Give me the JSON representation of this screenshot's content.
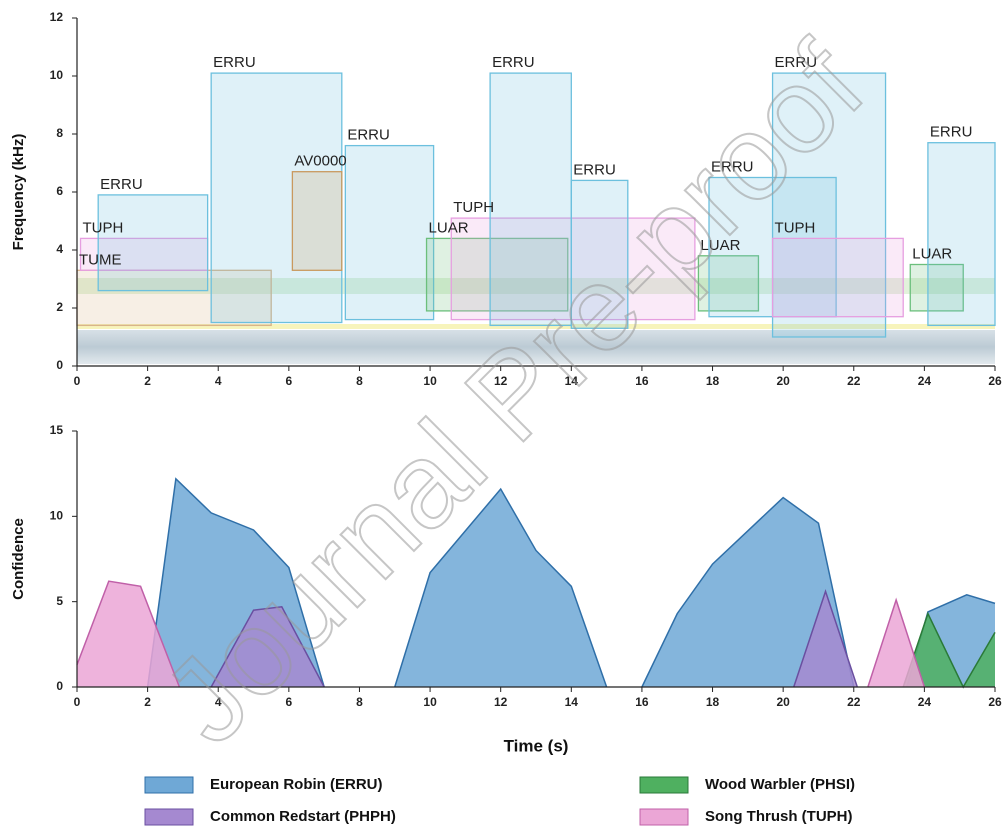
{
  "chart_data": [
    {
      "type": "boxes",
      "ylabel": "Frequency (kHz)",
      "xlim": [
        0,
        26
      ],
      "xticks": [
        0,
        2,
        4,
        6,
        8,
        10,
        12,
        14,
        16,
        18,
        20,
        22,
        24,
        26
      ],
      "ylim": [
        0,
        12
      ],
      "yticks": [
        0,
        2,
        4,
        6,
        8,
        10,
        12
      ],
      "label_colors": {
        "ERRU": "#6cc0de",
        "TUPH": "#e69ee0",
        "TUME": "#d9b48a",
        "AV0000": "#c9995e",
        "LUAR": "#6cbf7c"
      },
      "boxes": [
        {
          "label": "TUME",
          "x0": 0,
          "x1": 5.5,
          "y0": 1.4,
          "y1": 3.3
        },
        {
          "label": "TUPH",
          "x0": 0.1,
          "x1": 3.7,
          "y0": 3.3,
          "y1": 4.4
        },
        {
          "label": "ERRU",
          "x0": 0.6,
          "x1": 3.7,
          "y0": 2.6,
          "y1": 5.9
        },
        {
          "label": "ERRU",
          "x0": 3.8,
          "x1": 7.5,
          "y0": 1.5,
          "y1": 10.1
        },
        {
          "label": "AV0000",
          "x0": 6.1,
          "x1": 7.5,
          "y0": 3.3,
          "y1": 6.7
        },
        {
          "label": "ERRU",
          "x0": 7.6,
          "x1": 10.1,
          "y0": 1.6,
          "y1": 7.6
        },
        {
          "label": "LUAR",
          "x0": 9.9,
          "x1": 13.9,
          "y0": 1.9,
          "y1": 4.4
        },
        {
          "label": "TUPH",
          "x0": 10.6,
          "x1": 17.5,
          "y0": 1.6,
          "y1": 5.1
        },
        {
          "label": "ERRU",
          "x0": 11.7,
          "x1": 14,
          "y0": 1.4,
          "y1": 10.1
        },
        {
          "label": "ERRU",
          "x0": 14,
          "x1": 15.6,
          "y0": 1.3,
          "y1": 6.4
        },
        {
          "label": "LUAR",
          "x0": 17.6,
          "x1": 19.3,
          "y0": 1.9,
          "y1": 3.8
        },
        {
          "label": "ERRU",
          "x0": 17.9,
          "x1": 21.5,
          "y0": 1.7,
          "y1": 6.5
        },
        {
          "label": "ERRU",
          "x0": 19.7,
          "x1": 22.9,
          "y0": 1.0,
          "y1": 10.1
        },
        {
          "label": "TUPH",
          "x0": 19.7,
          "x1": 23.4,
          "y0": 1.7,
          "y1": 4.4
        },
        {
          "label": "LUAR",
          "x0": 23.6,
          "x1": 25.1,
          "y0": 1.9,
          "y1": 3.5
        },
        {
          "label": "ERRU",
          "x0": 24.1,
          "x1": 26,
          "y0": 1.4,
          "y1": 7.7
        }
      ]
    },
    {
      "type": "area",
      "xlabel": "Time (s)",
      "ylabel": "Confidence",
      "xlim": [
        0,
        26
      ],
      "xticks": [
        0,
        2,
        4,
        6,
        8,
        10,
        12,
        14,
        16,
        18,
        20,
        22,
        24,
        26
      ],
      "ylim": [
        0,
        15
      ],
      "yticks": [
        0,
        5,
        10,
        15
      ],
      "series": [
        {
          "name": "European Robin (ERRU)",
          "color": "#6fa8d6",
          "edge": "#2f6fa8",
          "x": [
            2.0,
            2.8,
            3.8,
            5,
            6,
            7,
            null,
            9,
            10,
            12,
            13,
            14,
            15,
            null,
            16,
            17,
            18,
            20,
            21,
            22,
            null,
            23.5,
            24.1,
            25.2,
            26
          ],
          "values": [
            0,
            12.2,
            10.2,
            9.2,
            7,
            0,
            null,
            0,
            6.7,
            11.6,
            8.0,
            5.9,
            0,
            null,
            0,
            4.3,
            7.2,
            11.1,
            9.6,
            0,
            null,
            0,
            4.4,
            5.4,
            4.9
          ]
        },
        {
          "name": "Common Redstart (PHPH)",
          "color": "#a589d0",
          "edge": "#6a4fa0",
          "x": [
            3.8,
            5,
            5.8,
            7,
            null,
            20.3,
            21.2,
            22.1
          ],
          "values": [
            0,
            4.5,
            4.7,
            0,
            null,
            0,
            5.6,
            0
          ]
        },
        {
          "name": "Wood Warbler (PHSI)",
          "color": "#4fb060",
          "edge": "#2a7a38",
          "x": [
            23.4,
            24.1,
            25.1,
            26
          ],
          "values": [
            0,
            4.3,
            0,
            3.2
          ]
        },
        {
          "name": "Song Thrush (TUPH)",
          "color": "#eba6d6",
          "edge": "#c060a8",
          "x": [
            0,
            0.9,
            1.8,
            2.9,
            null,
            22.4,
            23.2,
            24
          ],
          "values": [
            1.3,
            6.2,
            5.9,
            0,
            null,
            0,
            5.1,
            0
          ]
        }
      ]
    },
    {
      "type": "watermark",
      "text": "Journal Pre-proof"
    }
  ]
}
